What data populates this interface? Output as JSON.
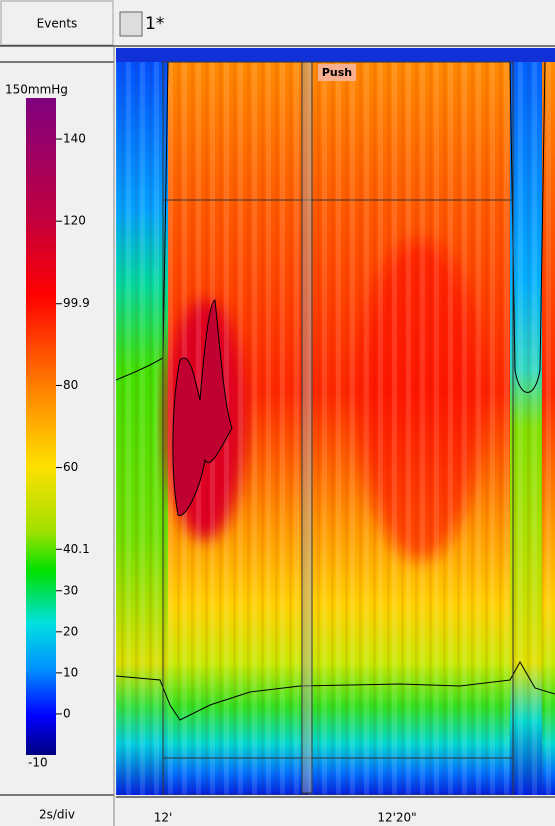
{
  "header": {
    "events_label": "Events",
    "tab_label": "1*"
  },
  "colorbar": {
    "unit_label": "150mmHg",
    "max": 150,
    "min": -10,
    "ticks": [
      140,
      120,
      99.9,
      80,
      60,
      40.1,
      30,
      20,
      10,
      0,
      -10
    ]
  },
  "plot": {
    "annotation": "Push"
  },
  "footer": {
    "scale_label": "2s/div",
    "time_labels": [
      "12'",
      "12'20\""
    ]
  }
}
